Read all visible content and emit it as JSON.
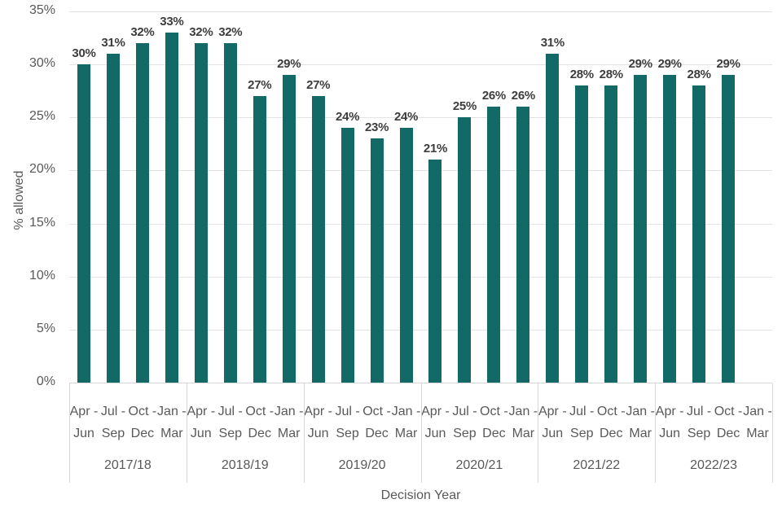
{
  "chart_data": {
    "type": "bar",
    "xlabel": "Decision Year",
    "ylabel": "% allowed",
    "ylim": [
      0,
      35
    ],
    "ytick_step": 5,
    "ytick_labels": [
      "0%",
      "5%",
      "10%",
      "15%",
      "20%",
      "25%",
      "30%",
      "35%"
    ],
    "grid": true,
    "legend": "none",
    "data_label_suffix": "%",
    "quarter_categories": [
      "Apr - Jun",
      "Jul - Sep",
      "Oct - Dec",
      "Jan - Mar"
    ],
    "groups": [
      {
        "year": "2017/18",
        "values": [
          30,
          31,
          32,
          33
        ]
      },
      {
        "year": "2018/19",
        "values": [
          32,
          32,
          27,
          29
        ]
      },
      {
        "year": "2019/20",
        "values": [
          27,
          24,
          23,
          24
        ]
      },
      {
        "year": "2020/21",
        "values": [
          21,
          25,
          26,
          26
        ]
      },
      {
        "year": "2021/22",
        "values": [
          31,
          28,
          28,
          29
        ]
      },
      {
        "year": "2022/23",
        "values": [
          29,
          28,
          29,
          null
        ]
      }
    ]
  },
  "colors": {
    "bar": "#126965",
    "gridline": "#e3e3e3",
    "axis_line": "#d6d6d6",
    "axis_text": "#595959",
    "data_label_text": "#3d3d3d"
  }
}
